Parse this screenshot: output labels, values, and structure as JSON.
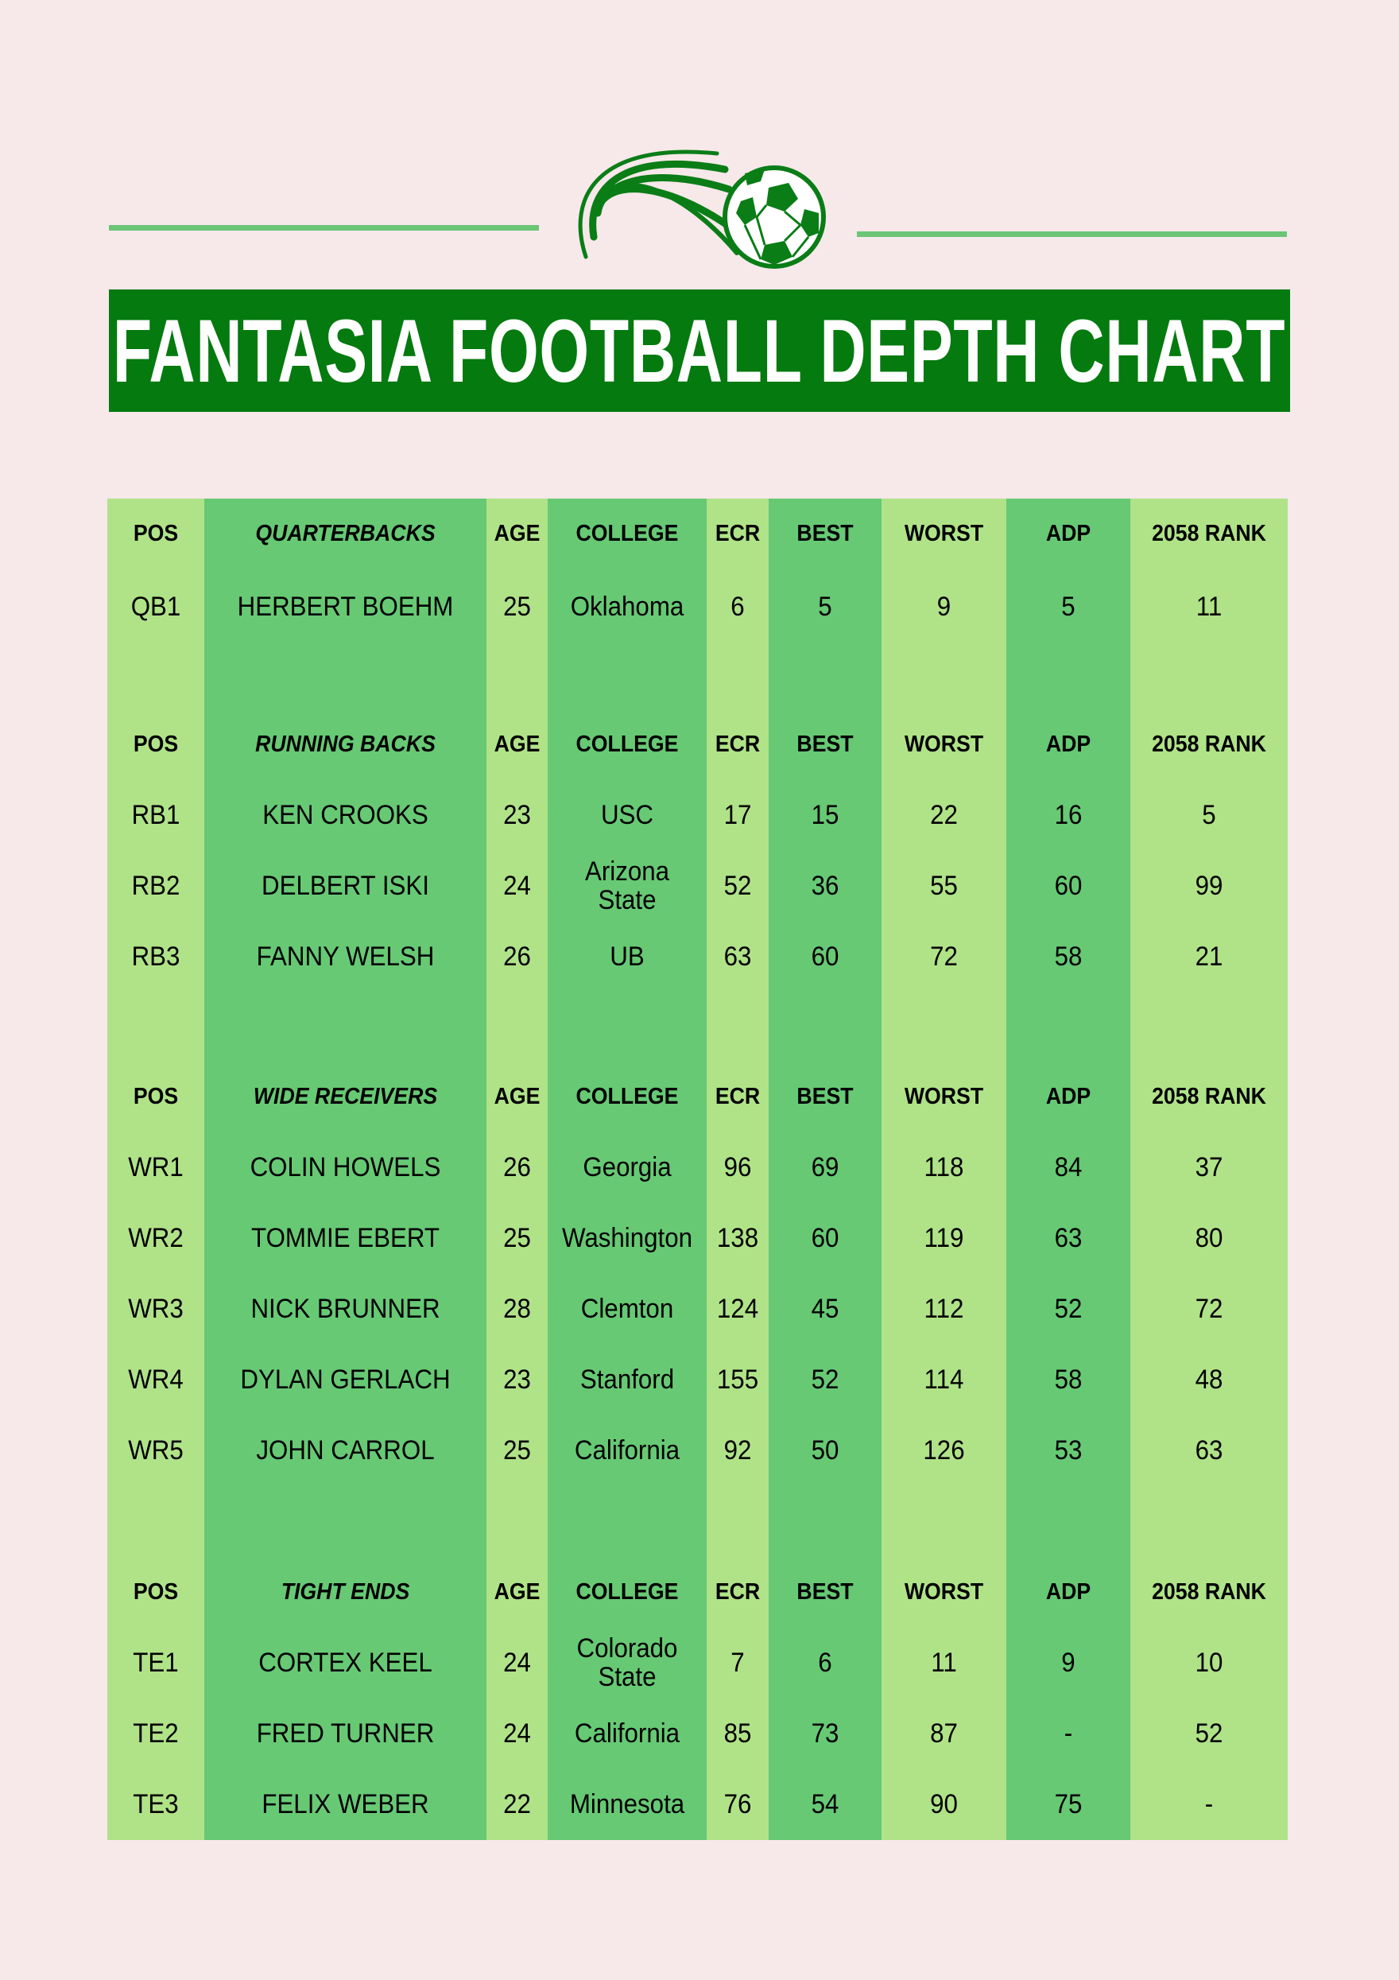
{
  "title": "FANTASIA FOOTBALL DEPTH CHART",
  "colors": {
    "background": "#f7e8ea",
    "title_bar": "#047a0f",
    "light_column": "#b0e388",
    "dark_column": "#67c974",
    "rule": "#6bc576"
  },
  "logo_icon": "soccer-ball-icon",
  "columns": [
    "POS",
    "",
    "AGE",
    "COLLEGE",
    "ECR",
    "BEST",
    "WORST",
    "ADP",
    "2058 RANK"
  ],
  "sections": [
    {
      "title": "QUARTERBACKS",
      "rows": [
        [
          "QB1",
          "HERBERT BOEHM",
          "25",
          "Oklahoma",
          "6",
          "5",
          "9",
          "5",
          "11"
        ]
      ]
    },
    {
      "title": "RUNNING BACKS",
      "rows": [
        [
          "RB1",
          "KEN CROOKS",
          "23",
          "USC",
          "17",
          "15",
          "22",
          "16",
          "5"
        ],
        [
          "RB2",
          "DELBERT ISKI",
          "24",
          "Arizona State",
          "52",
          "36",
          "55",
          "60",
          "99"
        ],
        [
          "RB3",
          "FANNY WELSH",
          "26",
          "UB",
          "63",
          "60",
          "72",
          "58",
          "21"
        ]
      ]
    },
    {
      "title": "WIDE RECEIVERS",
      "rows": [
        [
          "WR1",
          "COLIN HOWELS",
          "26",
          "Georgia",
          "96",
          "69",
          "118",
          "84",
          "37"
        ],
        [
          "WR2",
          "TOMMIE EBERT",
          "25",
          "Washington",
          "138",
          "60",
          "119",
          "63",
          "80"
        ],
        [
          "WR3",
          "NICK BRUNNER",
          "28",
          "Clemton",
          "124",
          "45",
          "112",
          "52",
          "72"
        ],
        [
          "WR4",
          "DYLAN GERLACH",
          "23",
          "Stanford",
          "155",
          "52",
          "114",
          "58",
          "48"
        ],
        [
          "WR5",
          "JOHN CARROL",
          "25",
          "California",
          "92",
          "50",
          "126",
          "53",
          "63"
        ]
      ]
    },
    {
      "title": "TIGHT ENDS",
      "rows": [
        [
          "TE1",
          "CORTEX KEEL",
          "24",
          "Colorado State",
          "7",
          "6",
          "11",
          "9",
          "10"
        ],
        [
          "TE2",
          "FRED TURNER",
          "24",
          "California",
          "85",
          "73",
          "87",
          "-",
          "52"
        ],
        [
          "TE3",
          "FELIX WEBER",
          "22",
          "Minnesota",
          "76",
          "54",
          "90",
          "75",
          "-"
        ]
      ]
    }
  ]
}
